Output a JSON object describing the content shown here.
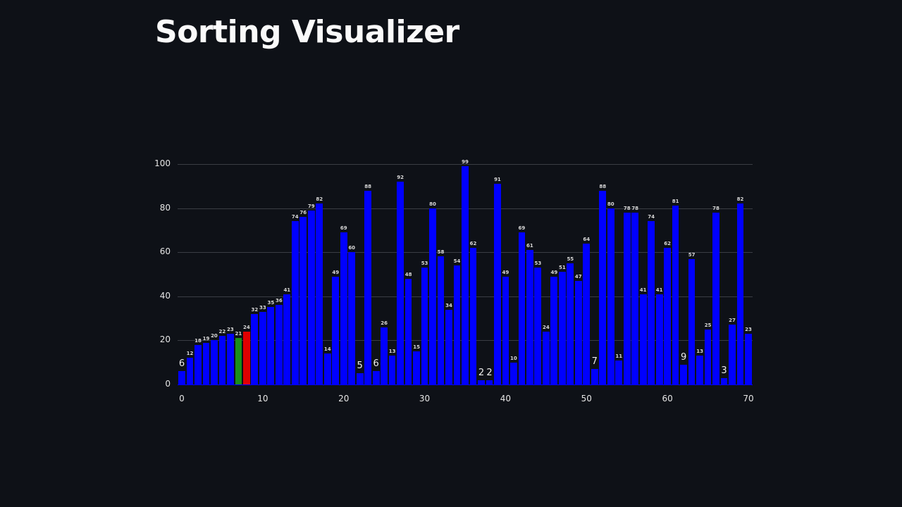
{
  "page": {
    "title": "Sorting Visualizer"
  },
  "colors": {
    "background": "#0e1117",
    "bar_default": "#0000ff",
    "bar_compare": "#1a8f1a",
    "bar_swap": "#e00000",
    "grid": "#3a3d44",
    "text": "#e6e6e6"
  },
  "chart_data": {
    "type": "bar",
    "title": "",
    "xlabel": "",
    "ylabel": "",
    "xlim": [
      0,
      70
    ],
    "ylim": [
      0,
      100
    ],
    "x_ticks": [
      0,
      10,
      20,
      30,
      40,
      50,
      60,
      70
    ],
    "y_ticks": [
      0,
      20,
      40,
      60,
      80,
      100
    ],
    "grid": true,
    "highlighted": {
      "7": "green",
      "8": "red"
    },
    "categories": [
      0,
      1,
      2,
      3,
      4,
      5,
      6,
      7,
      8,
      9,
      10,
      11,
      12,
      13,
      14,
      15,
      16,
      17,
      18,
      19,
      20,
      21,
      22,
      23,
      24,
      25,
      26,
      27,
      28,
      29,
      30,
      31,
      32,
      33,
      34,
      35,
      36,
      37,
      38,
      39,
      40,
      41,
      42,
      43,
      44,
      45,
      46,
      47,
      48,
      49,
      50,
      51,
      52,
      53,
      54,
      55,
      56,
      57,
      58,
      59,
      60,
      61,
      62,
      63,
      64,
      65,
      66,
      67,
      68,
      69,
      70
    ],
    "values": [
      6,
      12,
      18,
      19,
      20,
      22,
      23,
      21,
      24,
      32,
      33,
      35,
      36,
      41,
      74,
      76,
      79,
      82,
      14,
      49,
      69,
      60,
      5,
      88,
      6,
      26,
      13,
      92,
      48,
      15,
      53,
      80,
      58,
      34,
      54,
      99,
      62,
      2,
      2,
      91,
      49,
      10,
      69,
      61,
      53,
      24,
      49,
      51,
      55,
      47,
      64,
      7,
      88,
      80,
      11,
      78,
      78,
      41,
      74,
      41,
      62,
      81,
      9,
      57,
      13,
      25,
      78,
      3,
      27,
      82,
      23
    ]
  }
}
